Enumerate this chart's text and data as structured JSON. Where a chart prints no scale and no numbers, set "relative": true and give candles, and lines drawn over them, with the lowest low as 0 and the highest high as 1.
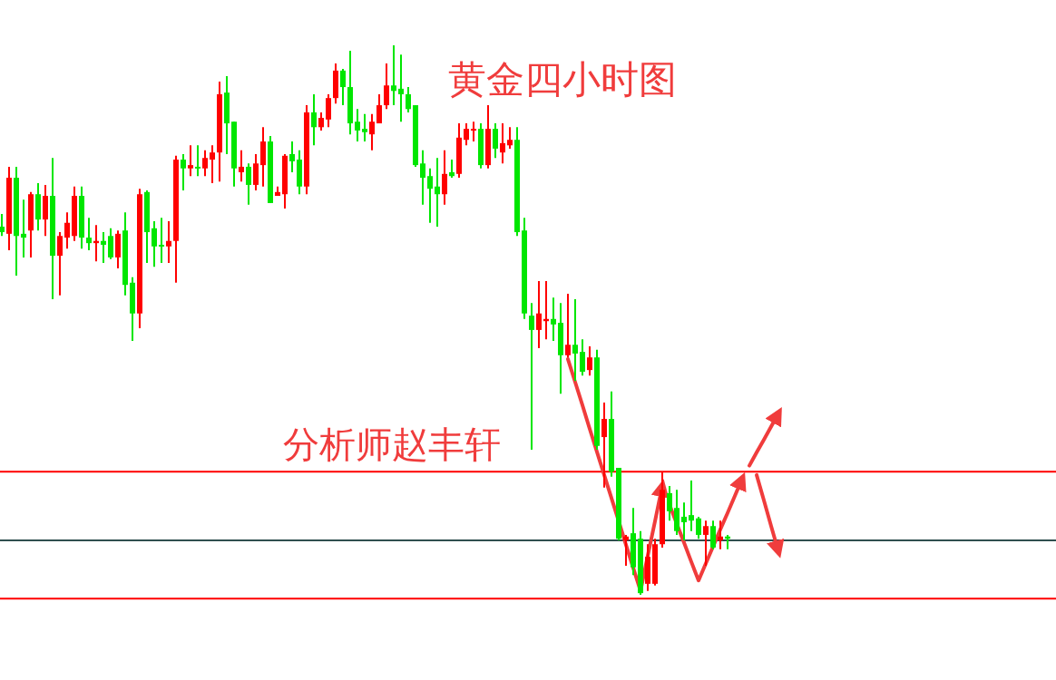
{
  "chart_data": {
    "type": "candlestick",
    "relative": true,
    "title": "黄金四小时图",
    "annotations": [
      "分析师赵丰轩"
    ],
    "categories": [
      null,
      null,
      null,
      null,
      null,
      null,
      null,
      null,
      null,
      null,
      null,
      null,
      null,
      null,
      null,
      null,
      null,
      null,
      null,
      null,
      null,
      null,
      null,
      null,
      null,
      null,
      null,
      null,
      null,
      null,
      null,
      null,
      null,
      null,
      null,
      null,
      null,
      null,
      null,
      null,
      null,
      null,
      null,
      null,
      null,
      null,
      null,
      null,
      null,
      null,
      null,
      null,
      null,
      null,
      null,
      null,
      null,
      null,
      null,
      null,
      null,
      null,
      null,
      null,
      null,
      null,
      null,
      null,
      null,
      null,
      null,
      null,
      null,
      null,
      null,
      null,
      null,
      null,
      null,
      null,
      null,
      null,
      null,
      null,
      null,
      null,
      null,
      null,
      null,
      null,
      null,
      null,
      null,
      null,
      null,
      null,
      null,
      null,
      null,
      null,
      null,
      null,
      null,
      null,
      null,
      null,
      null,
      null
    ],
    "ohlc": [
      [
        0.67,
        0.693,
        0.653,
        0.66
      ],
      [
        0.657,
        0.779,
        0.627,
        0.759
      ],
      [
        0.759,
        0.779,
        0.581,
        0.653
      ],
      [
        0.657,
        0.719,
        0.614,
        0.65
      ],
      [
        0.663,
        0.733,
        0.614,
        0.729
      ],
      [
        0.729,
        0.749,
        0.663,
        0.683
      ],
      [
        0.683,
        0.746,
        0.653,
        0.726
      ],
      [
        0.726,
        0.795,
        0.538,
        0.617
      ],
      [
        0.617,
        0.66,
        0.545,
        0.653
      ],
      [
        0.65,
        0.696,
        0.63,
        0.677
      ],
      [
        0.653,
        0.743,
        0.644,
        0.726
      ],
      [
        0.726,
        0.743,
        0.63,
        0.65
      ],
      [
        0.65,
        0.686,
        0.627,
        0.64
      ],
      [
        0.64,
        0.673,
        0.607,
        0.644
      ],
      [
        0.644,
        0.66,
        0.604,
        0.637
      ],
      [
        0.653,
        0.667,
        0.611,
        0.614
      ],
      [
        0.614,
        0.663,
        0.594,
        0.657
      ],
      [
        0.663,
        0.696,
        0.545,
        0.564
      ],
      [
        0.568,
        0.578,
        0.462,
        0.512
      ],
      [
        0.512,
        0.739,
        0.485,
        0.729
      ],
      [
        0.733,
        0.736,
        0.604,
        0.66
      ],
      [
        0.667,
        0.68,
        0.597,
        0.634
      ],
      [
        0.637,
        0.686,
        0.604,
        0.634
      ],
      [
        0.634,
        0.68,
        0.604,
        0.644
      ],
      [
        0.644,
        0.799,
        0.568,
        0.792
      ],
      [
        0.792,
        0.802,
        0.736,
        0.776
      ],
      [
        0.776,
        0.818,
        0.762,
        0.782
      ],
      [
        0.779,
        0.818,
        0.762,
        0.776
      ],
      [
        0.776,
        0.809,
        0.762,
        0.795
      ],
      [
        0.792,
        0.818,
        0.749,
        0.805
      ],
      [
        0.805,
        0.934,
        0.752,
        0.911
      ],
      [
        0.914,
        0.944,
        0.802,
        0.858
      ],
      [
        0.861,
        0.861,
        0.743,
        0.776
      ],
      [
        0.769,
        0.809,
        0.752,
        0.779
      ],
      [
        0.779,
        0.785,
        0.71,
        0.746
      ],
      [
        0.746,
        0.802,
        0.736,
        0.785
      ],
      [
        0.782,
        0.851,
        0.743,
        0.825
      ],
      [
        0.825,
        0.835,
        0.713,
        0.713
      ],
      [
        0.726,
        0.743,
        0.726,
        0.733
      ],
      [
        0.729,
        0.802,
        0.703,
        0.799
      ],
      [
        0.802,
        0.825,
        0.769,
        0.789
      ],
      [
        0.792,
        0.809,
        0.729,
        0.743
      ],
      [
        0.743,
        0.891,
        0.729,
        0.878
      ],
      [
        0.878,
        0.911,
        0.818,
        0.851
      ],
      [
        0.851,
        0.878,
        0.845,
        0.868
      ],
      [
        0.865,
        0.911,
        0.851,
        0.904
      ],
      [
        0.904,
        0.967,
        0.894,
        0.954
      ],
      [
        0.954,
        0.957,
        0.891,
        0.924
      ],
      [
        0.924,
        0.99,
        0.838,
        0.858
      ],
      [
        0.861,
        0.884,
        0.825,
        0.845
      ],
      [
        0.848,
        0.875,
        0.825,
        0.842
      ],
      [
        0.838,
        0.875,
        0.809,
        0.861
      ],
      [
        0.858,
        0.911,
        0.858,
        0.891
      ],
      [
        0.891,
        0.967,
        0.884,
        0.927
      ],
      [
        0.927,
        1,
        0.891,
        0.917
      ],
      [
        0.921,
        0.983,
        0.861,
        0.911
      ],
      [
        0.911,
        0.924,
        0.878,
        0.884
      ],
      [
        0.891,
        0.891,
        0.779,
        0.782
      ],
      [
        0.785,
        0.809,
        0.71,
        0.759
      ],
      [
        0.762,
        0.776,
        0.677,
        0.739
      ],
      [
        0.743,
        0.795,
        0.67,
        0.729
      ],
      [
        0.729,
        0.809,
        0.71,
        0.766
      ],
      [
        0.769,
        0.792,
        0.759,
        0.762
      ],
      [
        0.766,
        0.858,
        0.759,
        0.832
      ],
      [
        0.828,
        0.858,
        0.818,
        0.848
      ],
      [
        0.845,
        0.861,
        0.825,
        0.848
      ],
      [
        0.848,
        0.858,
        0.776,
        0.782
      ],
      [
        0.782,
        0.891,
        0.776,
        0.848
      ],
      [
        0.848,
        0.858,
        0.795,
        0.812
      ],
      [
        0.805,
        0.858,
        0.785,
        0.822
      ],
      [
        0.818,
        0.851,
        0.812,
        0.828
      ],
      [
        0.828,
        0.851,
        0.653,
        0.66
      ],
      [
        0.663,
        0.686,
        0.502,
        0.512
      ],
      [
        0.508,
        0.531,
        0.264,
        0.482
      ],
      [
        0.482,
        0.571,
        0.449,
        0.512
      ],
      [
        0.498,
        0.571,
        0.465,
        0.502
      ],
      [
        0.502,
        0.541,
        0.462,
        0.492
      ],
      [
        0.495,
        0.531,
        0.366,
        0.436
      ],
      [
        0.436,
        0.548,
        0.432,
        0.455
      ],
      [
        0.455,
        0.538,
        0.389,
        0.439
      ],
      [
        0.442,
        0.465,
        0.399,
        0.406
      ],
      [
        0.409,
        0.452,
        0.399,
        0.432
      ],
      [
        0.432,
        0.446,
        0.264,
        0.271
      ],
      [
        0.287,
        0.35,
        0.195,
        0.32
      ],
      [
        0.32,
        0.37,
        0.215,
        0.224
      ],
      [
        0.231,
        0.231,
        0.099,
        0.102
      ],
      [
        0.099,
        0.109,
        0.053,
        0.106
      ],
      [
        0.112,
        0.158,
        0.036,
        0.05
      ],
      [
        0.102,
        0.116,
        0,
        0.003
      ],
      [
        0.02,
        0.092,
        0.007,
        0.069
      ],
      [
        0.02,
        0.102,
        0.017,
        0.092
      ],
      [
        0.092,
        0.224,
        0.086,
        0.191
      ],
      [
        0.185,
        0.198,
        0.135,
        0.152
      ],
      [
        0.158,
        0.191,
        0.109,
        0.116
      ],
      [
        0.142,
        0.168,
        0.099,
        0.132
      ],
      [
        0.145,
        0.208,
        0.116,
        0.135
      ],
      [
        0.139,
        0.142,
        0.102,
        0.109
      ],
      [
        0.109,
        0.135,
        0.053,
        0.125
      ],
      [
        0.125,
        0.135,
        0.083,
        0.086
      ],
      [
        0.099,
        0.135,
        0.083,
        0.106
      ],
      [
        0.106,
        0.109,
        0.083,
        0.102
      ],
      null,
      null,
      null,
      null,
      null,
      null,
      null
    ],
    "colors": [
      "#00e600",
      "#ff0000",
      "#00e600",
      "#00e600",
      "#ff0000",
      "#00e600",
      "#ff0000",
      "#00e600",
      "#ff0000",
      "#ff0000",
      "#ff0000",
      "#00e600",
      "#00e600",
      "#ff0000",
      "#00e600",
      "#00e600",
      "#ff0000",
      "#00e600",
      "#00e600",
      "#ff0000",
      "#00e600",
      "#00e600",
      "#00e600",
      "#ff0000",
      "#ff0000",
      "#00e600",
      "#ff0000",
      "#00e600",
      "#ff0000",
      "#ff0000",
      "#ff0000",
      "#00e600",
      "#00e600",
      "#ff0000",
      "#00e600",
      "#ff0000",
      "#ff0000",
      "#00e600",
      "#ff0000",
      "#ff0000",
      "#00e600",
      "#00e600",
      "#ff0000",
      "#00e600",
      "#ff0000",
      "#ff0000",
      "#ff0000",
      "#00e600",
      "#00e600",
      "#00e600",
      "#00e600",
      "#ff0000",
      "#ff0000",
      "#ff0000",
      "#00e600",
      "#00e600",
      "#00e600",
      "#00e600",
      "#00e600",
      "#00e600",
      "#00e600",
      "#ff0000",
      "#00e600",
      "#ff0000",
      "#ff0000",
      "#ff0000",
      "#00e600",
      "#ff0000",
      "#00e600",
      "#ff0000",
      "#ff0000",
      "#00e600",
      "#00e600",
      "#00e600",
      "#ff0000",
      "#ff0000",
      "#00e600",
      "#00e600",
      "#ff0000",
      "#00e600",
      "#00e600",
      "#ff0000",
      "#00e600",
      "#ff0000",
      "#00e600",
      "#00e600",
      "#ff0000",
      "#00e600",
      "#00e600",
      "#ff0000",
      "#ff0000",
      "#ff0000",
      "#00e600",
      "#00e600",
      "#00e600",
      "#00e600",
      "#00e600",
      "#ff0000",
      "#00e600",
      "#ff0000",
      "#00e600",
      null,
      null,
      null,
      null,
      null,
      null,
      null
    ],
    "series": [
      {
        "type": "line",
        "color": "#f03c3c",
        "values": [
          null,
          null,
          null,
          null,
          null,
          null,
          null,
          null,
          null,
          null,
          null,
          null,
          null,
          null,
          null,
          null,
          null,
          null,
          null,
          null,
          null,
          null,
          null,
          null,
          null,
          null,
          null,
          null,
          null,
          null,
          null,
          null,
          null,
          null,
          null,
          null,
          null,
          null,
          null,
          null,
          null,
          null,
          null,
          null,
          null,
          null,
          null,
          null,
          null,
          null,
          null,
          null,
          null,
          null,
          null,
          null,
          null,
          null,
          null,
          null,
          null,
          null,
          null,
          null,
          null,
          null,
          null,
          null,
          null,
          null,
          null,
          null,
          null,
          null,
          null,
          null,
          null,
          null,
          0.429,
          0.387,
          0.345,
          0.302,
          0.26,
          0.218,
          0.176,
          0.134,
          0.091,
          0.049,
          0.007,
          0.071,
          0.134,
          0.198,
          null,
          null,
          null,
          null,
          null,
          null,
          null,
          null,
          null,
          null,
          null,
          null,
          null,
          null,
          null,
          null
        ]
      },
      {
        "type": "line",
        "color": "#f03c3c",
        "values": [
          null,
          null,
          null,
          null,
          null,
          null,
          null,
          null,
          null,
          null,
          null,
          null,
          null,
          null,
          null,
          null,
          null,
          null,
          null,
          null,
          null,
          null,
          null,
          null,
          null,
          null,
          null,
          null,
          null,
          null,
          null,
          null,
          null,
          null,
          null,
          null,
          null,
          null,
          null,
          null,
          null,
          null,
          null,
          null,
          null,
          null,
          null,
          null,
          null,
          null,
          null,
          null,
          null,
          null,
          null,
          null,
          null,
          null,
          null,
          null,
          null,
          null,
          null,
          null,
          null,
          null,
          null,
          null,
          null,
          null,
          null,
          null,
          null,
          null,
          null,
          null,
          null,
          null,
          null,
          null,
          null,
          null,
          null,
          null,
          null,
          null,
          null,
          null,
          null,
          null,
          null,
          null,
          0.164,
          0.129,
          0.095,
          0.06,
          0.026,
          0.057,
          0.088,
          0.119,
          0.149,
          0.18,
          0.211,
          null,
          null,
          null,
          null,
          null
        ]
      },
      {
        "type": "line",
        "color": "#f03c3c",
        "values": [
          null,
          null,
          null,
          null,
          null,
          null,
          null,
          null,
          null,
          null,
          null,
          null,
          null,
          null,
          null,
          null,
          null,
          null,
          null,
          null,
          null,
          null,
          null,
          null,
          null,
          null,
          null,
          null,
          null,
          null,
          null,
          null,
          null,
          null,
          null,
          null,
          null,
          null,
          null,
          null,
          null,
          null,
          null,
          null,
          null,
          null,
          null,
          null,
          null,
          null,
          null,
          null,
          null,
          null,
          null,
          null,
          null,
          null,
          null,
          null,
          null,
          null,
          null,
          null,
          null,
          null,
          null,
          null,
          null,
          null,
          null,
          null,
          null,
          null,
          null,
          null,
          null,
          null,
          null,
          null,
          null,
          null,
          null,
          null,
          null,
          null,
          null,
          null,
          null,
          null,
          null,
          null,
          null,
          null,
          null,
          null,
          null,
          null,
          null,
          null,
          null,
          null,
          null,
          0.235,
          0.259,
          0.282,
          0.306,
          0.33
        ]
      },
      {
        "type": "line",
        "color": "#f03c3c",
        "values": [
          null,
          null,
          null,
          null,
          null,
          null,
          null,
          null,
          null,
          null,
          null,
          null,
          null,
          null,
          null,
          null,
          null,
          null,
          null,
          null,
          null,
          null,
          null,
          null,
          null,
          null,
          null,
          null,
          null,
          null,
          null,
          null,
          null,
          null,
          null,
          null,
          null,
          null,
          null,
          null,
          null,
          null,
          null,
          null,
          null,
          null,
          null,
          null,
          null,
          null,
          null,
          null,
          null,
          null,
          null,
          null,
          null,
          null,
          null,
          null,
          null,
          null,
          null,
          null,
          null,
          null,
          null,
          null,
          null,
          null,
          null,
          null,
          null,
          null,
          null,
          null,
          null,
          null,
          null,
          null,
          null,
          null,
          null,
          null,
          null,
          null,
          null,
          null,
          null,
          null,
          null,
          null,
          null,
          null,
          null,
          null,
          null,
          null,
          null,
          null,
          null,
          null,
          null,
          null,
          0.218,
          0.172,
          0.125,
          0.079
        ]
      }
    ],
    "ref_lines": [
      {
        "axis": "y",
        "value": 0.224,
        "color": "#ff0000"
      },
      {
        "axis": "y",
        "value": 0.099,
        "color": "#2f4f4f"
      },
      {
        "axis": "y",
        "value": -0.007,
        "color": "#ff0000"
      }
    ]
  }
}
